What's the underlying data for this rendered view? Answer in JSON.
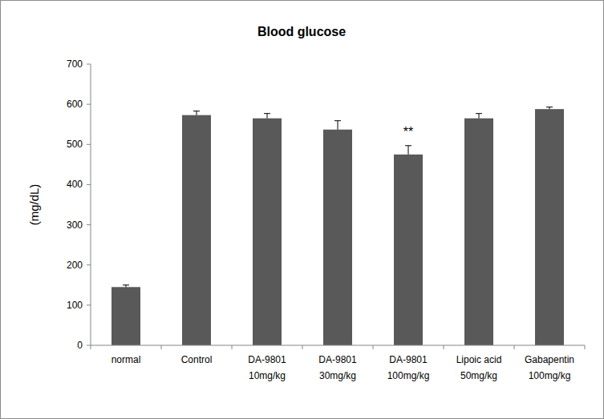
{
  "chart_data": {
    "type": "bar",
    "title": "Blood glucose",
    "y_label": "(mg/dL)",
    "categories": [
      "normal",
      "Control",
      "DA-9801\n10mg/kg",
      "DA-9801\n30mg/kg",
      "DA-9801\n100mg/kg",
      "Lipoic acid\n50mg/kg",
      "Gabapentin\n100mg/kg"
    ],
    "values": [
      145,
      573,
      565,
      537,
      475,
      565,
      588
    ],
    "errors": [
      5,
      10,
      12,
      22,
      22,
      12,
      5
    ],
    "color": "#595959",
    "ylim": [
      0,
      700
    ],
    "yticks": [
      0,
      100,
      200,
      300,
      400,
      500,
      600,
      700
    ],
    "grid": false,
    "annotations": [
      {
        "text": "**",
        "category_index": 4
      }
    ]
  }
}
